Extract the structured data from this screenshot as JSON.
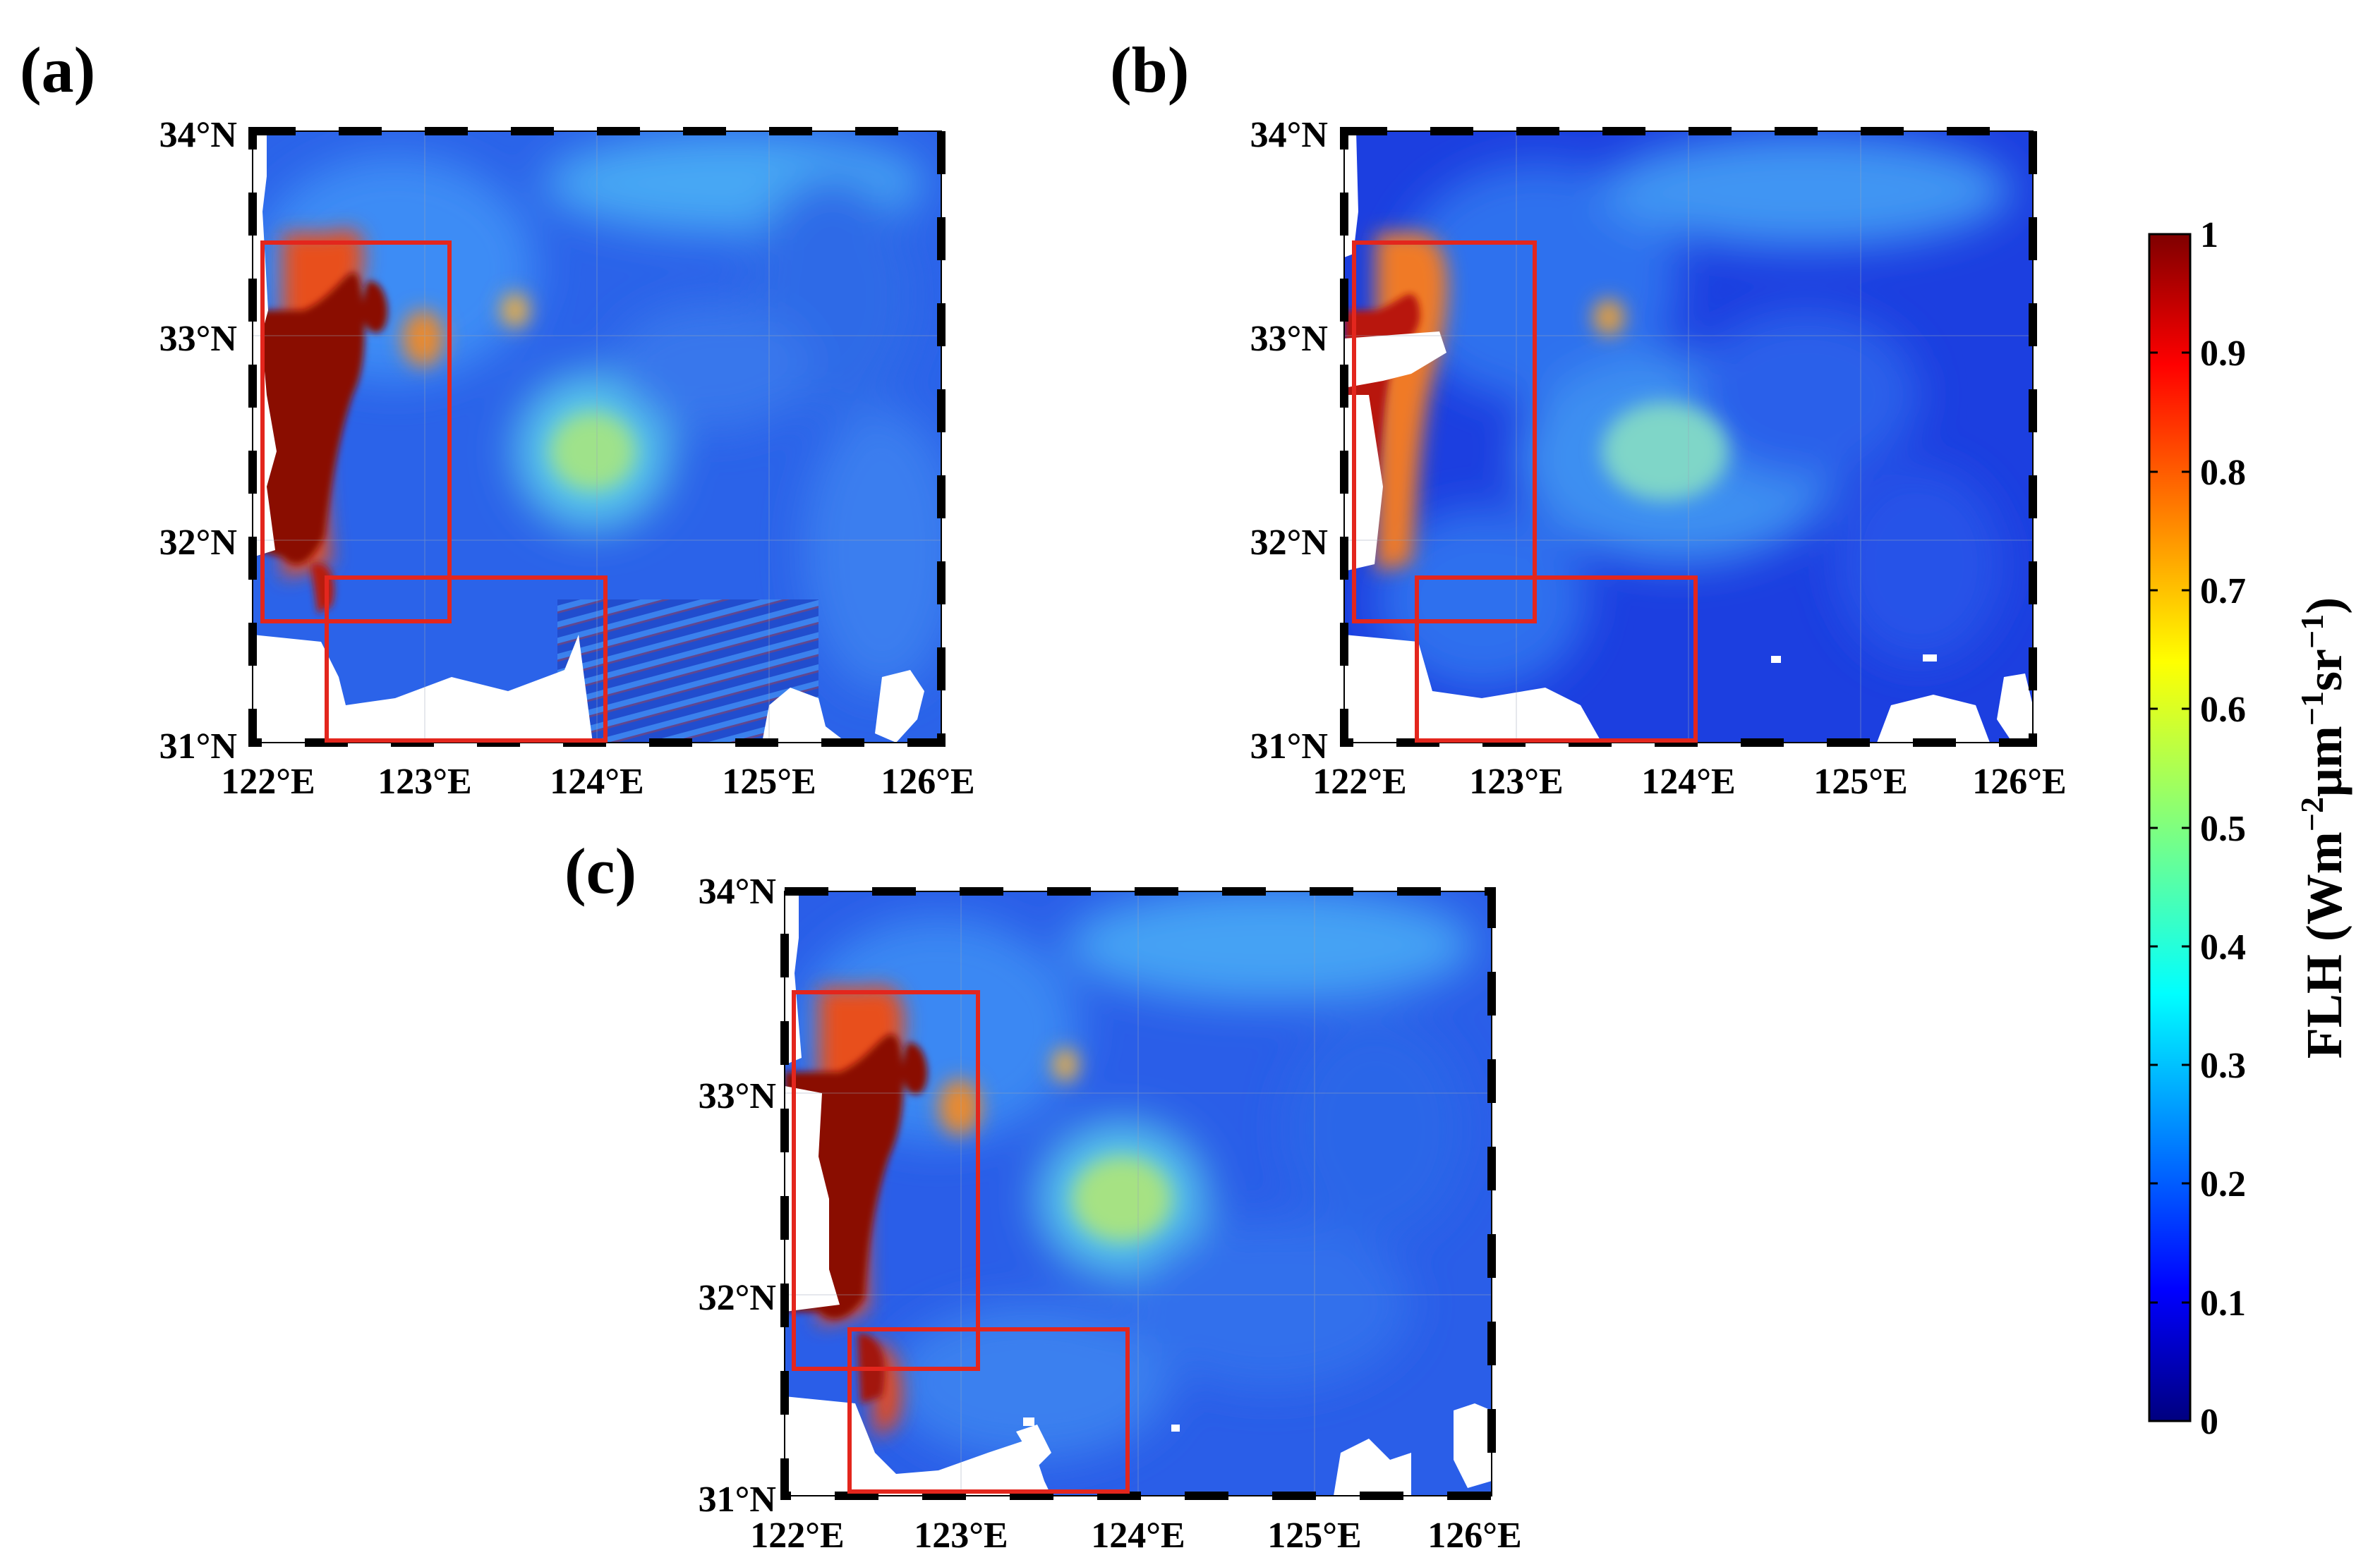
{
  "panels": [
    {
      "id": "a",
      "label": "(a)",
      "lat_ticks": [
        "34°N",
        "33°N",
        "32°N",
        "31°N"
      ],
      "lon_ticks": [
        "122°E",
        "123°E",
        "124°E",
        "125°E",
        "126°E"
      ],
      "extent": {
        "lon": [
          122,
          126
        ],
        "lat": [
          31,
          34
        ]
      },
      "regions": [
        {
          "name": "north-box",
          "lon": [
            122.05,
            123.15
          ],
          "lat": [
            31.6,
            33.45
          ]
        },
        {
          "name": "south-box",
          "lon": [
            122.45,
            124.05
          ],
          "lat": [
            31.0,
            31.8
          ]
        }
      ]
    },
    {
      "id": "b",
      "label": "(b)",
      "lat_ticks": [
        "34°N",
        "33°N",
        "32°N",
        "31°N"
      ],
      "lon_ticks": [
        "122°E",
        "123°E",
        "124°E",
        "125°E",
        "126°E"
      ],
      "extent": {
        "lon": [
          122,
          126
        ],
        "lat": [
          31,
          34
        ]
      },
      "regions": [
        {
          "name": "north-box",
          "lon": [
            122.05,
            123.15
          ],
          "lat": [
            31.6,
            33.45
          ]
        },
        {
          "name": "south-box",
          "lon": [
            122.45,
            124.05
          ],
          "lat": [
            31.0,
            31.8
          ]
        }
      ]
    },
    {
      "id": "c",
      "label": "(c)",
      "lat_ticks": [
        "34°N",
        "33°N",
        "32°N",
        "31°N"
      ],
      "lon_ticks": [
        "122°E",
        "123°E",
        "124°E",
        "125°E",
        "126°E"
      ],
      "extent": {
        "lon": [
          122,
          126
        ],
        "lat": [
          31,
          34
        ]
      },
      "regions": [
        {
          "name": "north-box",
          "lon": [
            122.05,
            123.15
          ],
          "lat": [
            31.6,
            33.45
          ]
        },
        {
          "name": "south-box",
          "lon": [
            122.45,
            124.05
          ],
          "lat": [
            31.0,
            31.8
          ]
        }
      ]
    }
  ],
  "colorbar": {
    "ticks": [
      "1",
      "0.9",
      "0.8",
      "0.7",
      "0.6",
      "0.5",
      "0.4",
      "0.3",
      "0.2",
      "0.1",
      "0"
    ],
    "label_main": "FLH (Wm",
    "label_sup1": "−2",
    "label_mid": "μm",
    "label_sup2": "−1",
    "label_sr": "sr",
    "label_sup3": "−1",
    "label_end": ")",
    "range": [
      0,
      1
    ],
    "colormap": "jet"
  },
  "colors": {
    "box": "#e3261d",
    "land": "#ffffff",
    "ocean_base": "#2a62e8",
    "colormap_stops": [
      "#00007f",
      "#0000ff",
      "#007fff",
      "#00ffff",
      "#7fff7f",
      "#ffff00",
      "#ff7f00",
      "#ff0000",
      "#7f0000"
    ]
  }
}
